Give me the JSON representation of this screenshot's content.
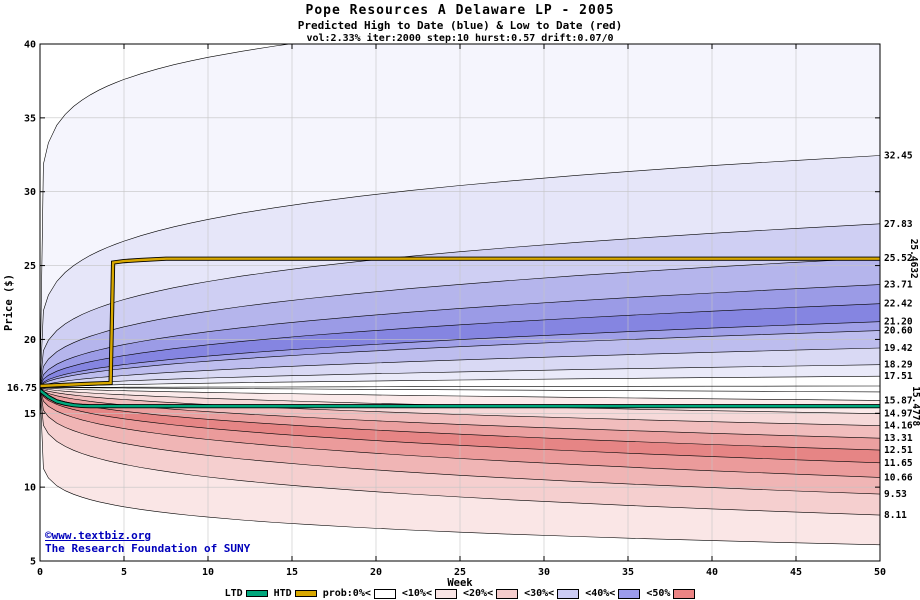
{
  "header": {
    "title": "Pope Resources A Delaware LP - 2005",
    "subtitle": "Predicted High to Date (blue) &  Low to Date (red)",
    "params": "vol:2.33% iter:2000 step:10 hurst:0.57 drift:0.07/0"
  },
  "footer": {
    "copyright": "©www.textbiz.org",
    "attribution": "The Research Foundation of SUNY"
  },
  "legend": {
    "items": [
      {
        "label": "LTD",
        "swatch": "#00a87d",
        "type": "line"
      },
      {
        "label": "HTD",
        "swatch": "#d8a800",
        "type": "line"
      },
      {
        "label": "prob:0%<",
        "swatch": "#ffffff",
        "type": "box"
      },
      {
        "label": "<10%<",
        "swatch": "#f8e4e4",
        "type": "box"
      },
      {
        "label": "<20%<",
        "swatch": "#f4cccc",
        "type": "box"
      },
      {
        "label": "<30%<",
        "swatch": "#ccccf4",
        "type": "box"
      },
      {
        "label": "<40%<",
        "swatch": "#9c9cec",
        "type": "box"
      },
      {
        "label": "<50%",
        "swatch": "#ec8484",
        "type": "box"
      }
    ]
  },
  "chart_data": {
    "type": "area",
    "title": "Pope Resources A Delaware LP - 2005",
    "subtitle": "Predicted High to Date (blue) &  Low to Date (red)",
    "params": "vol:2.33% iter:2000 step:10 hurst:0.57 drift:0.07/0",
    "xlabel": "Week",
    "ylabel": "Price ($)",
    "xlim": [
      0,
      50
    ],
    "ylim": [
      5,
      40
    ],
    "x_ticks": [
      0,
      5,
      10,
      15,
      20,
      25,
      30,
      35,
      40,
      45,
      50
    ],
    "y_ticks": [
      5,
      10,
      15,
      20,
      25,
      30,
      35,
      40
    ],
    "grid": true,
    "start_price": 16.75,
    "start_price_label": "16.75",
    "htd": {
      "name": "HTD",
      "final": 25.4632,
      "final_label": "25.4632",
      "color": "#d8a800",
      "label_color": "#c09000",
      "points": [
        [
          0,
          16.85
        ],
        [
          1,
          16.9
        ],
        [
          2,
          16.95
        ],
        [
          3,
          17.0
        ],
        [
          4.2,
          17.05
        ],
        [
          4.35,
          25.2
        ],
        [
          5,
          25.3
        ],
        [
          6,
          25.38
        ],
        [
          7.5,
          25.4632
        ],
        [
          50,
          25.4632
        ]
      ]
    },
    "ltd": {
      "name": "LTD",
      "final": 15.4778,
      "final_label": "15.4778",
      "color": "#00a87d",
      "label_color": "#009868",
      "points": [
        [
          0,
          16.55
        ],
        [
          0.5,
          16.1
        ],
        [
          1,
          15.8
        ],
        [
          1.5,
          15.65
        ],
        [
          2,
          15.55
        ],
        [
          2.5,
          15.5
        ],
        [
          3,
          15.4778
        ],
        [
          50,
          15.4778
        ]
      ]
    },
    "high_fan": {
      "boundaries": [
        {
          "end": 16.85,
          "exp": 0.9
        },
        {
          "end": 17.51,
          "exp": 0.6
        },
        {
          "end": 18.29,
          "exp": 0.55
        },
        {
          "end": 19.42,
          "exp": 0.52
        },
        {
          "end": 20.6,
          "exp": 0.48
        },
        {
          "end": 21.2,
          "exp": 0.46
        },
        {
          "end": 22.42,
          "exp": 0.42
        },
        {
          "end": 23.71,
          "exp": 0.38
        },
        {
          "end": 25.52,
          "exp": 0.33
        },
        {
          "end": 27.83,
          "exp": 0.27
        },
        {
          "end": 32.45,
          "exp": 0.2
        },
        {
          "end": 43.0,
          "exp": 0.1
        }
      ],
      "fills": [
        "#ffffff",
        "#eaeaf9",
        "#d9d9f4",
        "#bdbdee",
        "#a0a0e8",
        "#8585e1",
        "#9b9be6",
        "#b5b5ec",
        "#cfcff3",
        "#e6e6f9",
        "#f5f5fd"
      ]
    },
    "low_fan": {
      "boundaries": [
        {
          "end": 16.45,
          "exp": 0.9
        },
        {
          "end": 15.87,
          "exp": 0.6
        },
        {
          "end": 14.97,
          "exp": 0.55
        },
        {
          "end": 14.16,
          "exp": 0.5
        },
        {
          "end": 13.31,
          "exp": 0.46
        },
        {
          "end": 12.51,
          "exp": 0.42
        },
        {
          "end": 11.65,
          "exp": 0.38
        },
        {
          "end": 10.66,
          "exp": 0.34
        },
        {
          "end": 9.53,
          "exp": 0.28
        },
        {
          "end": 8.11,
          "exp": 0.22
        },
        {
          "end": 6.1,
          "exp": 0.12
        }
      ],
      "fills": [
        "#ffffff",
        "#fbeaea",
        "#f6d9d9",
        "#f1bdbd",
        "#eba0a0",
        "#e68585",
        "#eb9b9b",
        "#f0b5b5",
        "#f5cfcf",
        "#fae6e6"
      ]
    },
    "right_labels": [
      "32.45",
      "27.83",
      "25.52",
      "23.71",
      "22.42",
      "21.20",
      "20.60",
      "19.42",
      "18.29",
      "17.51",
      "15.87",
      "14.97",
      "14.16",
      "13.31",
      "12.51",
      "11.65",
      "10.66",
      "9.53",
      "8.11"
    ]
  }
}
